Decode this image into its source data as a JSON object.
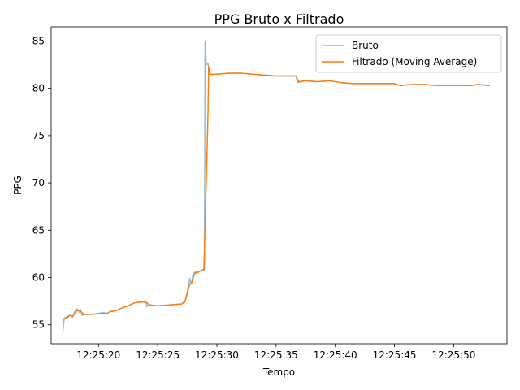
{
  "chart_data": {
    "type": "line",
    "title": "PPG Bruto x Filtrado",
    "xlabel": "Tempo",
    "ylabel": "PPG",
    "xlim": [
      "12:25:16.00",
      "12:25:54.50"
    ],
    "ylim": [
      53.0,
      86.5
    ],
    "x_ticks": [
      "12:25:20",
      "12:25:25",
      "12:25:30",
      "12:25:35",
      "12:25:40",
      "12:25:45",
      "12:25:50"
    ],
    "y_ticks": [
      55,
      60,
      65,
      70,
      75,
      80,
      85
    ],
    "legend_position": "top-right",
    "grid": false,
    "series": [
      {
        "name": "Bruto",
        "color": "#8fbbd9",
        "points": [
          [
            "12:25:17.00",
            54.4
          ],
          [
            "12:25:17.10",
            55.7
          ],
          [
            "12:25:17.40",
            55.9
          ],
          [
            "12:25:17.60",
            56.0
          ],
          [
            "12:25:17.80",
            55.8
          ],
          [
            "12:25:18.00",
            56.4
          ],
          [
            "12:25:18.20",
            56.7
          ],
          [
            "12:25:18.40",
            56.3
          ],
          [
            "12:25:18.50",
            56.6
          ],
          [
            "12:25:18.60",
            56.0
          ],
          [
            "12:25:19.00",
            56.1
          ],
          [
            "12:25:19.50",
            56.1
          ],
          [
            "12:25:20.00",
            56.2
          ],
          [
            "12:25:20.40",
            56.3
          ],
          [
            "12:25:20.70",
            56.2
          ],
          [
            "12:25:21.00",
            56.4
          ],
          [
            "12:25:21.50",
            56.5
          ],
          [
            "12:25:22.00",
            56.8
          ],
          [
            "12:25:22.50",
            57.0
          ],
          [
            "12:25:23.00",
            57.3
          ],
          [
            "12:25:23.50",
            57.4
          ],
          [
            "12:25:24.00",
            57.5
          ],
          [
            "12:25:24.10",
            56.9
          ],
          [
            "12:25:24.30",
            57.1
          ],
          [
            "12:25:25.00",
            57.0
          ],
          [
            "12:25:26.00",
            57.1
          ],
          [
            "12:25:27.00",
            57.2
          ],
          [
            "12:25:27.30",
            57.5
          ],
          [
            "12:25:27.50",
            58.5
          ],
          [
            "12:25:27.70",
            59.9
          ],
          [
            "12:25:27.85",
            59.3
          ],
          [
            "12:25:28.00",
            60.5
          ],
          [
            "12:25:28.30",
            60.6
          ],
          [
            "12:25:28.70",
            60.7
          ],
          [
            "12:25:28.95",
            60.8
          ],
          [
            "12:25:29.00",
            85.0
          ],
          [
            "12:25:29.10",
            82.5
          ],
          [
            "12:25:29.25",
            82.6
          ],
          [
            "12:25:29.40",
            81.5
          ],
          [
            "12:25:30.00",
            81.5
          ],
          [
            "12:25:31.00",
            81.6
          ],
          [
            "12:25:32.00",
            81.6
          ],
          [
            "12:25:33.00",
            81.5
          ],
          [
            "12:25:34.00",
            81.4
          ],
          [
            "12:25:35.00",
            81.3
          ],
          [
            "12:25:36.00",
            81.3
          ],
          [
            "12:25:36.70",
            81.3
          ],
          [
            "12:25:36.80",
            80.6
          ],
          [
            "12:25:37.50",
            80.8
          ],
          [
            "12:25:38.50",
            80.7
          ],
          [
            "12:25:39.50",
            80.8
          ],
          [
            "12:25:40.50",
            80.6
          ],
          [
            "12:25:41.50",
            80.5
          ],
          [
            "12:25:42.50",
            80.5
          ],
          [
            "12:25:43.50",
            80.5
          ],
          [
            "12:25:44.50",
            80.5
          ],
          [
            "12:25:45.00",
            80.5
          ],
          [
            "12:25:45.50",
            80.3
          ],
          [
            "12:25:46.50",
            80.4
          ],
          [
            "12:25:47.50",
            80.4
          ],
          [
            "12:25:48.50",
            80.3
          ],
          [
            "12:25:49.50",
            80.3
          ],
          [
            "12:25:50.50",
            80.3
          ],
          [
            "12:25:51.50",
            80.3
          ],
          [
            "12:25:52.00",
            80.4
          ],
          [
            "12:25:53.00",
            80.3
          ]
        ]
      },
      {
        "name": "Filtrado (Moving Average)",
        "color": "#ff7f0e",
        "points": [
          [
            "12:25:17.10",
            55.6
          ],
          [
            "12:25:17.40",
            55.8
          ],
          [
            "12:25:17.60",
            56.0
          ],
          [
            "12:25:17.80",
            55.9
          ],
          [
            "12:25:18.00",
            56.2
          ],
          [
            "12:25:18.20",
            56.5
          ],
          [
            "12:25:18.40",
            56.5
          ],
          [
            "12:25:18.60",
            56.3
          ],
          [
            "12:25:18.80",
            56.1
          ],
          [
            "12:25:19.50",
            56.1
          ],
          [
            "12:25:20.00",
            56.2
          ],
          [
            "12:25:20.40",
            56.2
          ],
          [
            "12:25:20.70",
            56.2
          ],
          [
            "12:25:21.00",
            56.4
          ],
          [
            "12:25:21.50",
            56.5
          ],
          [
            "12:25:22.00",
            56.8
          ],
          [
            "12:25:22.50",
            57.0
          ],
          [
            "12:25:23.00",
            57.3
          ],
          [
            "12:25:23.50",
            57.4
          ],
          [
            "12:25:24.00",
            57.4
          ],
          [
            "12:25:24.30",
            57.1
          ],
          [
            "12:25:25.00",
            57.0
          ],
          [
            "12:25:26.00",
            57.1
          ],
          [
            "12:25:27.00",
            57.2
          ],
          [
            "12:25:27.30",
            57.4
          ],
          [
            "12:25:27.50",
            58.3
          ],
          [
            "12:25:27.70",
            59.3
          ],
          [
            "12:25:27.90",
            59.5
          ],
          [
            "12:25:28.10",
            60.4
          ],
          [
            "12:25:28.50",
            60.6
          ],
          [
            "12:25:28.90",
            60.9
          ],
          [
            "12:25:29.10",
            70.0
          ],
          [
            "12:25:29.25",
            77.5
          ],
          [
            "12:25:29.30",
            82.3
          ],
          [
            "12:25:29.45",
            81.5
          ],
          [
            "12:25:30.00",
            81.5
          ],
          [
            "12:25:31.00",
            81.6
          ],
          [
            "12:25:32.00",
            81.6
          ],
          [
            "12:25:33.00",
            81.5
          ],
          [
            "12:25:34.00",
            81.4
          ],
          [
            "12:25:35.00",
            81.3
          ],
          [
            "12:25:36.00",
            81.3
          ],
          [
            "12:25:36.70",
            81.3
          ],
          [
            "12:25:36.90",
            80.7
          ],
          [
            "12:25:37.50",
            80.8
          ],
          [
            "12:25:38.50",
            80.7
          ],
          [
            "12:25:39.50",
            80.8
          ],
          [
            "12:25:40.50",
            80.6
          ],
          [
            "12:25:41.50",
            80.5
          ],
          [
            "12:25:42.50",
            80.5
          ],
          [
            "12:25:43.50",
            80.5
          ],
          [
            "12:25:44.50",
            80.5
          ],
          [
            "12:25:45.00",
            80.5
          ],
          [
            "12:25:45.50",
            80.3
          ],
          [
            "12:25:46.50",
            80.4
          ],
          [
            "12:25:47.50",
            80.4
          ],
          [
            "12:25:48.50",
            80.3
          ],
          [
            "12:25:49.50",
            80.3
          ],
          [
            "12:25:50.50",
            80.3
          ],
          [
            "12:25:51.50",
            80.3
          ],
          [
            "12:25:52.00",
            80.4
          ],
          [
            "12:25:53.00",
            80.3
          ]
        ]
      }
    ]
  }
}
